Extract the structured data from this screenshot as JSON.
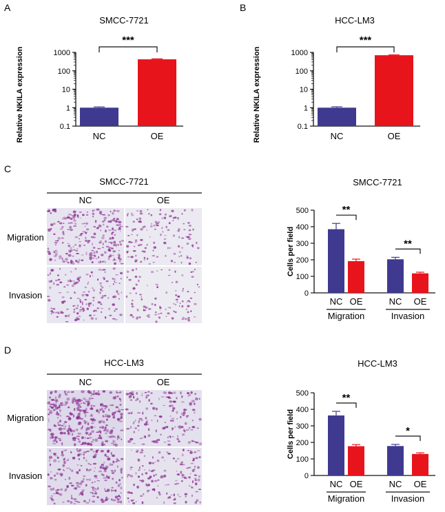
{
  "colors": {
    "nc": "#3f3a8f",
    "oe": "#e8141c",
    "axis": "#111111",
    "micro_bg": "#e9e7f1",
    "stain": "#8a2f8f"
  },
  "panels": {
    "A": {
      "letter": "A"
    },
    "B": {
      "letter": "B"
    },
    "C": {
      "letter": "C",
      "micro_title": "SMCC-7721",
      "col_labels": [
        "NC",
        "OE"
      ],
      "row_labels": [
        "Migration",
        "Invasion"
      ]
    },
    "D": {
      "letter": "D",
      "micro_title": "HCC-LM3",
      "col_labels": [
        "NC",
        "OE"
      ],
      "row_labels": [
        "Migration",
        "Invasion"
      ]
    }
  },
  "chart_data": [
    {
      "id": "A",
      "type": "bar",
      "scale": "log",
      "title": "SMCC-7721",
      "ylabel": "Relative NKILA expression",
      "xlabel": "",
      "categories": [
        "NC",
        "OE"
      ],
      "values": [
        1,
        420
      ],
      "errors": [
        0.1,
        25
      ],
      "ylim": [
        0.1,
        1000
      ],
      "yticks": [
        0.1,
        1,
        10,
        100,
        1000
      ],
      "ytick_labels": [
        "0.1",
        "1",
        "10",
        "100",
        "1000"
      ],
      "significance": "***"
    },
    {
      "id": "B",
      "type": "bar",
      "scale": "log",
      "title": "HCC-LM3",
      "ylabel": "Relative NKILA expression",
      "xlabel": "",
      "categories": [
        "NC",
        "OE"
      ],
      "values": [
        1,
        700
      ],
      "errors": [
        0.12,
        30
      ],
      "ylim": [
        0.1,
        1000
      ],
      "yticks": [
        0.1,
        1,
        10,
        100,
        1000
      ],
      "ytick_labels": [
        "0.1",
        "1",
        "10",
        "100",
        "1000"
      ],
      "significance": "***"
    },
    {
      "id": "C",
      "type": "bar",
      "scale": "linear",
      "title": "SMCC-7721",
      "ylabel": "Cells per field",
      "groups": [
        {
          "name": "Migration",
          "categories": [
            "NC",
            "OE"
          ],
          "values": [
            385,
            192
          ],
          "errors": [
            35,
            12
          ],
          "significance": "**"
        },
        {
          "name": "Invasion",
          "categories": [
            "NC",
            "OE"
          ],
          "values": [
            203,
            118
          ],
          "errors": [
            12,
            7
          ],
          "significance": "**"
        }
      ],
      "ylim": [
        0,
        500
      ],
      "yticks": [
        0,
        100,
        200,
        300,
        400,
        500
      ],
      "ytick_labels": [
        "0",
        "100",
        "200",
        "300",
        "400",
        "500"
      ]
    },
    {
      "id": "D",
      "type": "bar",
      "scale": "linear",
      "title": "HCC-LM3",
      "ylabel": "Cells per field",
      "groups": [
        {
          "name": "Migration",
          "categories": [
            "NC",
            "OE"
          ],
          "values": [
            363,
            177
          ],
          "errors": [
            25,
            10
          ],
          "significance": "**"
        },
        {
          "name": "Invasion",
          "categories": [
            "NC",
            "OE"
          ],
          "values": [
            178,
            130
          ],
          "errors": [
            10,
            7
          ],
          "significance": "*"
        }
      ],
      "ylim": [
        0,
        500
      ],
      "yticks": [
        0,
        100,
        200,
        300,
        400,
        500
      ],
      "ytick_labels": [
        "0",
        "100",
        "200",
        "300",
        "400",
        "500"
      ]
    }
  ]
}
